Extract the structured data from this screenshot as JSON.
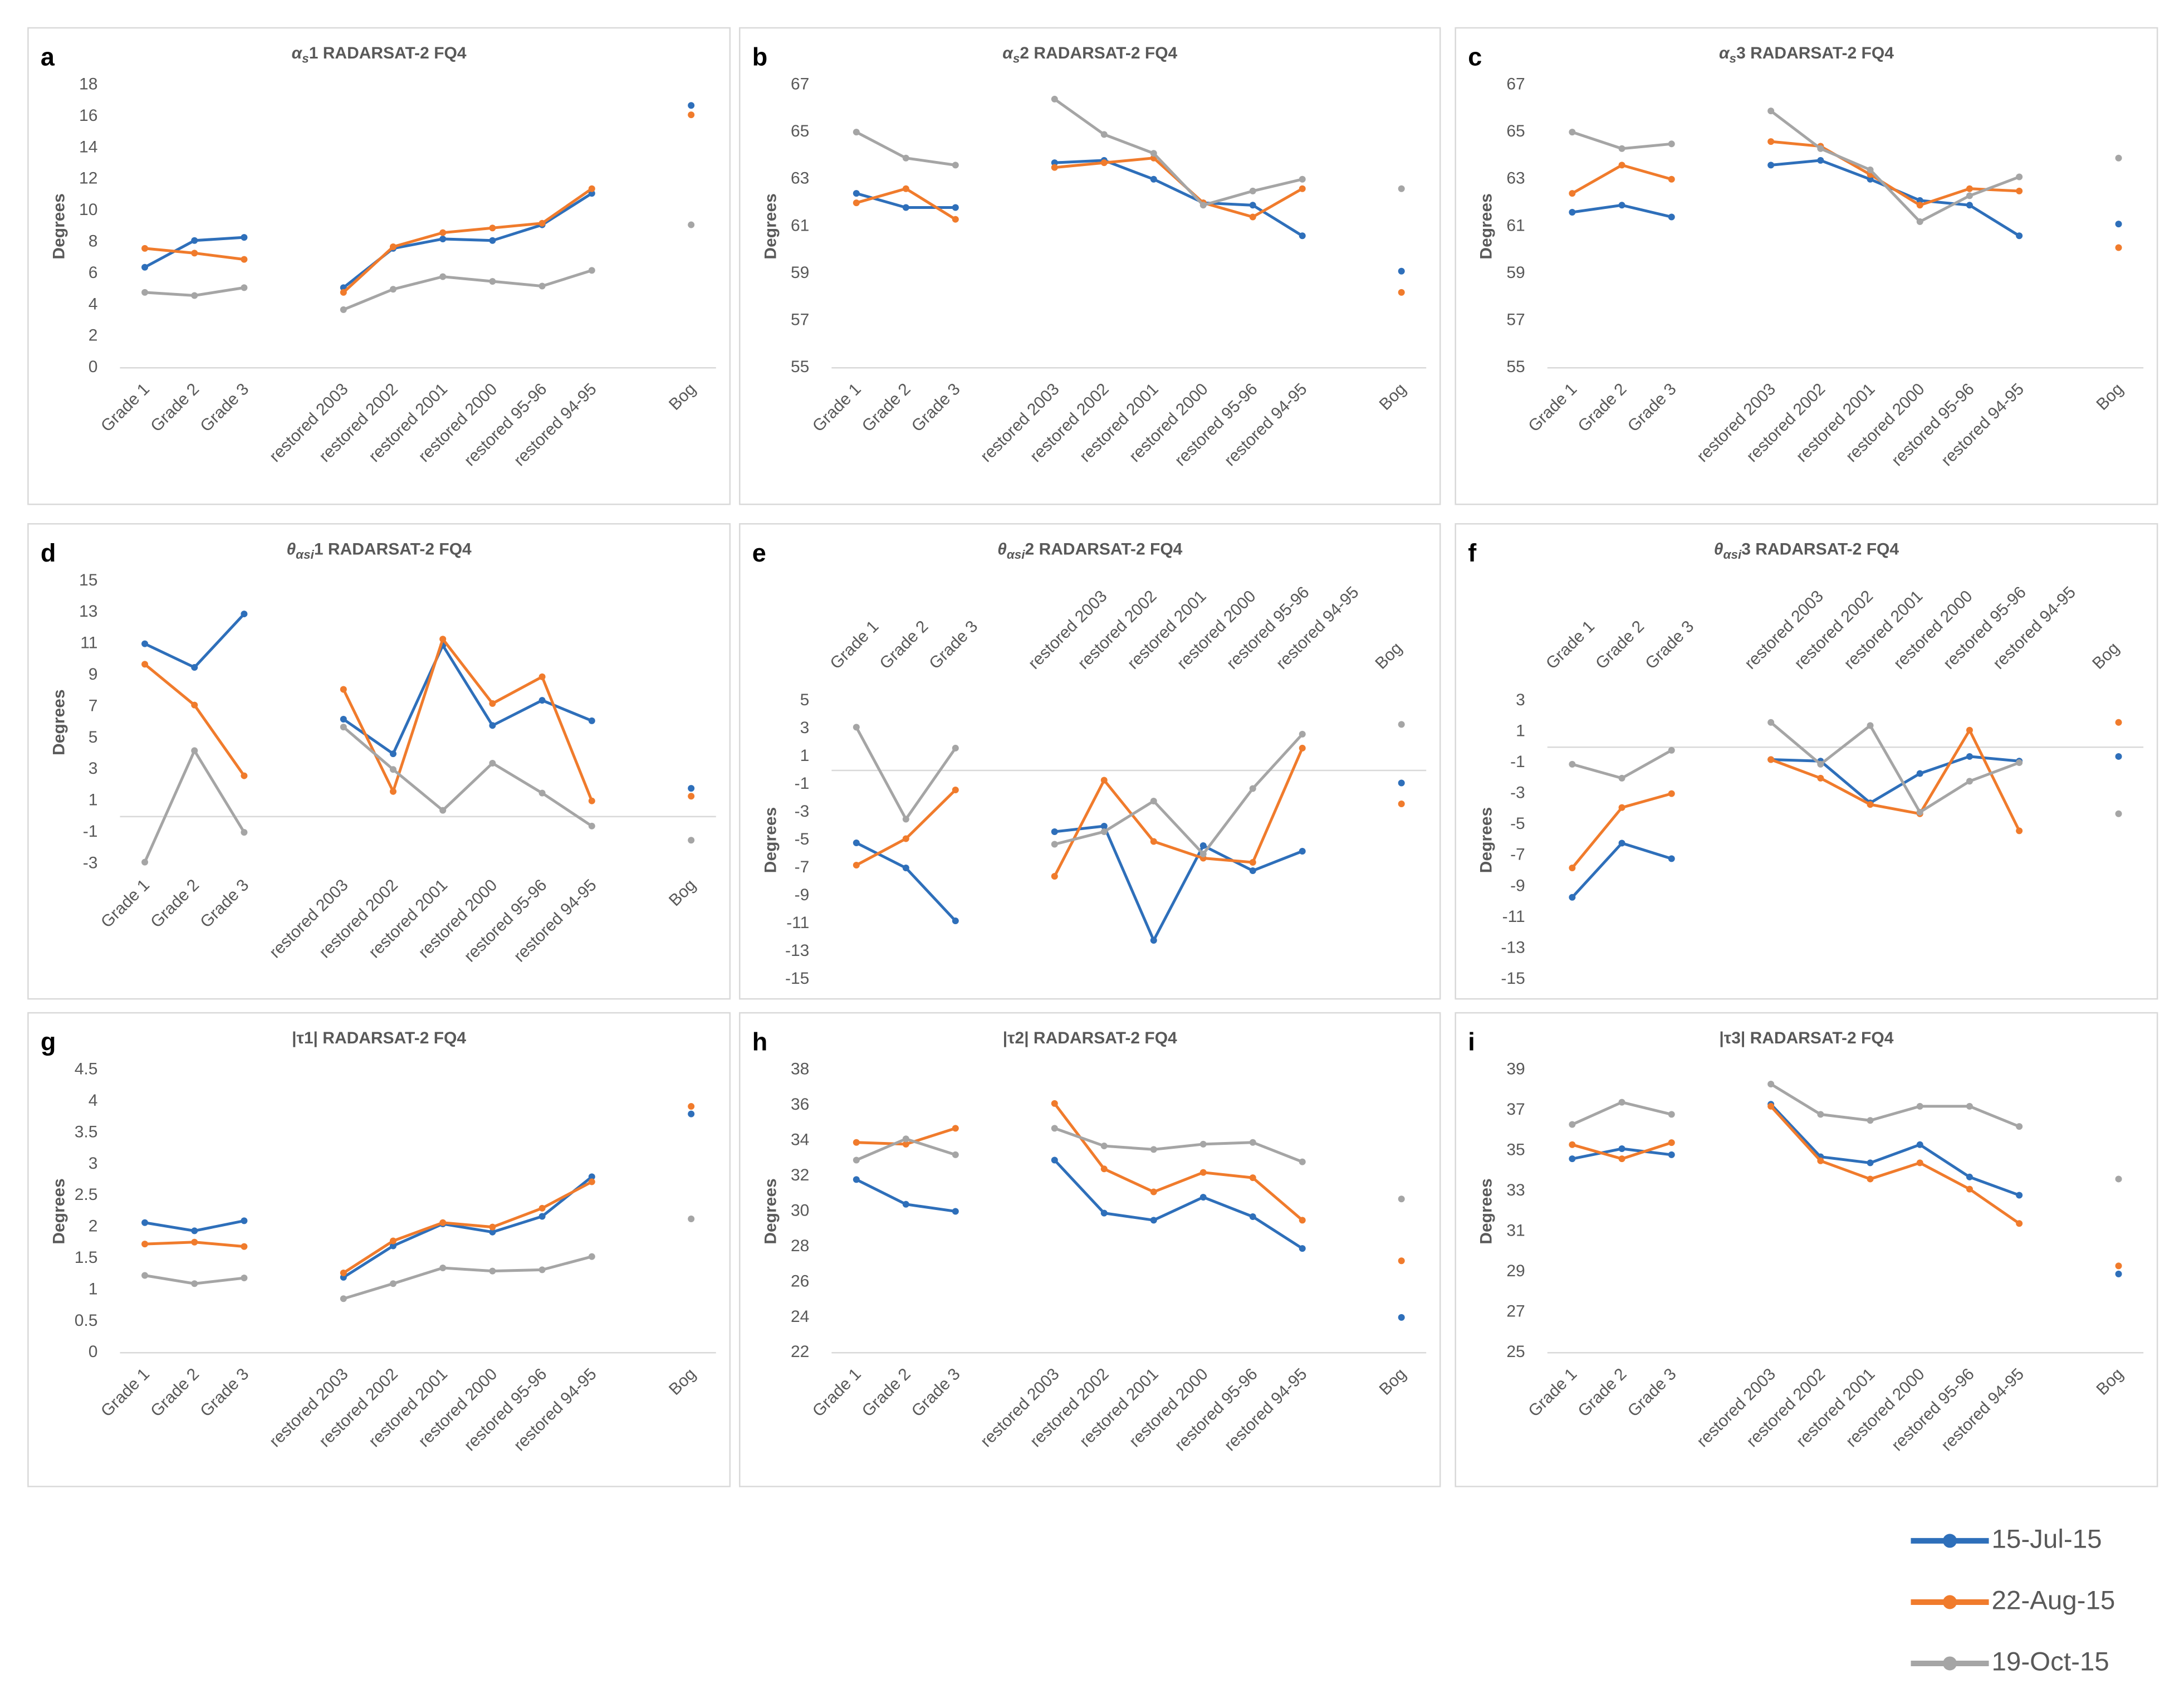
{
  "legend": [
    {
      "name": "15-Jul-15",
      "color": "#2e6fba"
    },
    {
      "name": "22-Aug-15",
      "color": "#f07b2c"
    },
    {
      "name": "19-Oct-15",
      "color": "#a5a5a5"
    }
  ],
  "chart_data": [
    {
      "type": "line",
      "label": "a",
      "title_symbol": "α",
      "title_sub": "s",
      "title_rest": "1  RADARSAT-2 FQ4",
      "ylabel": "Degrees",
      "x_labels": "bottom",
      "grid": false,
      "categories": [
        "Grade 1",
        "Grade 2",
        "Grade 3",
        null,
        "restored 2003",
        "restored 2002",
        "restored 2001",
        "restored 2000",
        "restored 95-96",
        "restored 94-95",
        null,
        "Bog"
      ],
      "ylim": [
        0,
        18
      ],
      "yticks": [
        0,
        2,
        4,
        6,
        8,
        10,
        12,
        14,
        16,
        18
      ],
      "series": [
        {
          "values": [
            6.4,
            8.1,
            8.3,
            null,
            5.1,
            7.6,
            8.2,
            8.1,
            9.1,
            11.1,
            null,
            16.7
          ]
        },
        {
          "values": [
            7.6,
            7.3,
            6.9,
            null,
            4.8,
            7.7,
            8.6,
            8.9,
            9.2,
            11.4,
            null,
            16.1
          ]
        },
        {
          "values": [
            4.8,
            4.6,
            5.1,
            null,
            3.7,
            5.0,
            5.8,
            5.5,
            5.2,
            6.2,
            null,
            9.1
          ]
        }
      ]
    },
    {
      "type": "line",
      "label": "b",
      "title_symbol": "α",
      "title_sub": "s",
      "title_rest": "2  RADARSAT-2 FQ4",
      "ylabel": "Degrees",
      "x_labels": "bottom",
      "grid": false,
      "categories": [
        "Grade 1",
        "Grade 2",
        "Grade 3",
        null,
        "restored 2003",
        "restored 2002",
        "restored 2001",
        "restored 2000",
        "restored 95-96",
        "restored 94-95",
        null,
        "Bog"
      ],
      "ylim": [
        55,
        67
      ],
      "yticks": [
        55,
        57,
        59,
        61,
        63,
        65,
        67
      ],
      "series": [
        {
          "values": [
            62.4,
            61.8,
            61.8,
            null,
            63.7,
            63.8,
            63.0,
            62.0,
            61.9,
            60.6,
            null,
            59.1
          ]
        },
        {
          "values": [
            62.0,
            62.6,
            61.3,
            null,
            63.5,
            63.7,
            63.9,
            62.0,
            61.4,
            62.6,
            null,
            58.2
          ]
        },
        {
          "values": [
            65.0,
            63.9,
            63.6,
            null,
            66.4,
            64.9,
            64.1,
            61.9,
            62.5,
            63.0,
            null,
            62.6
          ]
        }
      ]
    },
    {
      "type": "line",
      "label": "c",
      "title_symbol": "α",
      "title_sub": "s",
      "title_rest": "3  RADARSAT-2 FQ4",
      "ylabel": "Degrees",
      "x_labels": "bottom",
      "grid": false,
      "categories": [
        "Grade 1",
        "Grade 2",
        "Grade 3",
        null,
        "restored 2003",
        "restored 2002",
        "restored 2001",
        "restored 2000",
        "restored 95-96",
        "restored 94-95",
        null,
        "Bog"
      ],
      "ylim": [
        55,
        67
      ],
      "yticks": [
        55,
        57,
        59,
        61,
        63,
        65,
        67
      ],
      "series": [
        {
          "values": [
            61.6,
            61.9,
            61.4,
            null,
            63.6,
            63.8,
            63.0,
            62.1,
            61.9,
            60.6,
            null,
            61.1
          ]
        },
        {
          "values": [
            62.4,
            63.6,
            63.0,
            null,
            64.6,
            64.4,
            63.2,
            61.9,
            62.6,
            62.5,
            null,
            60.1
          ]
        },
        {
          "values": [
            65.0,
            64.3,
            64.5,
            null,
            65.9,
            64.3,
            63.4,
            61.2,
            62.3,
            63.1,
            null,
            63.9
          ]
        }
      ]
    },
    {
      "type": "line",
      "label": "d",
      "title_symbol": "θ",
      "title_sub": "αsi",
      "title_rest": "1  RADARSAT-2 FQ4",
      "ylabel": "Degrees",
      "x_labels": "bottom",
      "grid": false,
      "categories": [
        "Grade 1",
        "Grade 2",
        "Grade 3",
        null,
        "restored 2003",
        "restored 2002",
        "restored 2001",
        "restored 2000",
        "restored 95-96",
        "restored 94-95",
        null,
        "Bog"
      ],
      "ylim": [
        -3,
        15
      ],
      "yticks": [
        -3,
        -1,
        1,
        3,
        5,
        7,
        9,
        11,
        13,
        15
      ],
      "series": [
        {
          "values": [
            11.0,
            9.5,
            12.9,
            null,
            6.2,
            4.0,
            10.9,
            5.8,
            7.4,
            6.1,
            null,
            1.8
          ]
        },
        {
          "values": [
            9.7,
            7.1,
            2.6,
            null,
            8.1,
            1.6,
            11.3,
            7.2,
            8.9,
            1.0,
            null,
            1.3
          ]
        },
        {
          "values": [
            -2.9,
            4.2,
            -1.0,
            null,
            5.7,
            3.0,
            0.4,
            3.4,
            1.5,
            -0.6,
            null,
            -1.5
          ]
        }
      ]
    },
    {
      "type": "line",
      "label": "e",
      "title_symbol": "θ",
      "title_sub": "αsi",
      "title_rest": "2  RADARSAT-2 FQ4",
      "ylabel": "Degrees",
      "x_labels": "top",
      "grid": false,
      "categories": [
        "Grade 1",
        "Grade 2",
        "Grade 3",
        null,
        "restored 2003",
        "restored 2002",
        "restored 2001",
        "restored 2000",
        "restored 95-96",
        "restored 94-95",
        null,
        "Bog"
      ],
      "ylim": [
        -15,
        5
      ],
      "yticks": [
        -15,
        -13,
        -11,
        -9,
        -7,
        -5,
        -3,
        -1,
        1,
        3,
        5
      ],
      "series": [
        {
          "values": [
            -5.2,
            -7.0,
            -10.8,
            null,
            -4.4,
            -4.0,
            -12.2,
            -5.4,
            -7.2,
            -5.8,
            null,
            -0.9
          ]
        },
        {
          "values": [
            -6.8,
            -4.9,
            -1.4,
            null,
            -7.6,
            -0.7,
            -5.1,
            -6.3,
            -6.6,
            1.6,
            null,
            -2.4
          ]
        },
        {
          "values": [
            3.1,
            -3.5,
            1.6,
            null,
            -5.3,
            -4.4,
            -2.2,
            -6.0,
            -1.3,
            2.6,
            null,
            3.3
          ]
        }
      ]
    },
    {
      "type": "line",
      "label": "f",
      "title_symbol": "θ",
      "title_sub": "αsi",
      "title_rest": "3  RADARSAT-2 FQ4",
      "ylabel": "Degrees",
      "x_labels": "top",
      "grid": false,
      "categories": [
        "Grade 1",
        "Grade 2",
        "Grade 3",
        null,
        "restored 2003",
        "restored 2002",
        "restored 2001",
        "restored 2000",
        "restored 95-96",
        "restored 94-95",
        null,
        "Bog"
      ],
      "ylim": [
        -15,
        3
      ],
      "yticks": [
        -15,
        -13,
        -11,
        -9,
        -7,
        -5,
        -3,
        -1,
        1,
        3
      ],
      "series": [
        {
          "values": [
            -9.7,
            -6.2,
            -7.2,
            null,
            -0.8,
            -0.9,
            -3.6,
            -1.7,
            -0.6,
            -0.9,
            null,
            -0.6
          ]
        },
        {
          "values": [
            -7.8,
            -3.9,
            -3.0,
            null,
            -0.8,
            -2.0,
            -3.7,
            -4.3,
            1.1,
            -5.4,
            null,
            1.6
          ]
        },
        {
          "values": [
            -1.1,
            -2.0,
            -0.2,
            null,
            1.6,
            -1.1,
            1.4,
            -4.2,
            -2.2,
            -1.0,
            null,
            -4.3
          ]
        }
      ]
    },
    {
      "type": "line",
      "label": "g",
      "title_rest": "|τ1|  RADARSAT-2 FQ4",
      "ylabel": "Degrees",
      "x_labels": "bottom",
      "grid": false,
      "categories": [
        "Grade 1",
        "Grade 2",
        "Grade 3",
        null,
        "restored 2003",
        "restored 2002",
        "restored 2001",
        "restored 2000",
        "restored 95-96",
        "restored 94-95",
        null,
        "Bog"
      ],
      "ylim": [
        0,
        4.5
      ],
      "yticks": [
        0,
        0.5,
        1,
        1.5,
        2,
        2.5,
        3,
        3.5,
        4,
        4.5
      ],
      "series": [
        {
          "values": [
            2.07,
            1.94,
            2.1,
            null,
            1.2,
            1.7,
            2.05,
            1.92,
            2.17,
            2.8,
            null,
            3.8
          ]
        },
        {
          "values": [
            1.73,
            1.76,
            1.69,
            null,
            1.27,
            1.78,
            2.07,
            2.0,
            2.3,
            2.72,
            null,
            3.92
          ]
        },
        {
          "values": [
            1.23,
            1.1,
            1.19,
            null,
            0.86,
            1.1,
            1.35,
            1.3,
            1.32,
            1.53,
            null,
            2.13
          ]
        }
      ]
    },
    {
      "type": "line",
      "label": "h",
      "title_rest": "|τ2|  RADARSAT-2 FQ4",
      "ylabel": "Degrees",
      "x_labels": "bottom",
      "grid": false,
      "categories": [
        "Grade 1",
        "Grade 2",
        "Grade 3",
        null,
        "restored 2003",
        "restored 2002",
        "restored 2001",
        "restored 2000",
        "restored 95-96",
        "restored 94-95",
        null,
        "Bog"
      ],
      "ylim": [
        22,
        38
      ],
      "yticks": [
        22,
        24,
        26,
        28,
        30,
        32,
        34,
        36,
        38
      ],
      "series": [
        {
          "values": [
            31.8,
            30.4,
            30.0,
            null,
            32.9,
            29.9,
            29.5,
            30.8,
            29.7,
            27.9,
            null,
            24.0
          ]
        },
        {
          "values": [
            33.9,
            33.8,
            34.7,
            null,
            36.1,
            32.4,
            31.1,
            32.2,
            31.9,
            29.5,
            null,
            27.2
          ]
        },
        {
          "values": [
            32.9,
            34.1,
            33.2,
            null,
            34.7,
            33.7,
            33.5,
            33.8,
            33.9,
            32.8,
            null,
            30.7
          ]
        }
      ]
    },
    {
      "type": "line",
      "label": "i",
      "title_rest": "|τ3|  RADARSAT-2 FQ4",
      "ylabel": "Degrees",
      "x_labels": "bottom",
      "grid": false,
      "categories": [
        "Grade 1",
        "Grade 2",
        "Grade 3",
        null,
        "restored 2003",
        "restored 2002",
        "restored 2001",
        "restored 2000",
        "restored 95-96",
        "restored 94-95",
        null,
        "Bog"
      ],
      "ylim": [
        25,
        39
      ],
      "yticks": [
        25,
        27,
        29,
        31,
        33,
        35,
        37,
        39
      ],
      "series": [
        {
          "values": [
            34.6,
            35.1,
            34.8,
            null,
            37.3,
            34.7,
            34.4,
            35.3,
            33.7,
            32.8,
            null,
            28.9
          ]
        },
        {
          "values": [
            35.3,
            34.6,
            35.4,
            null,
            37.2,
            34.5,
            33.6,
            34.4,
            33.1,
            31.4,
            null,
            29.3
          ]
        },
        {
          "values": [
            36.3,
            37.4,
            36.8,
            null,
            38.3,
            36.8,
            36.5,
            37.2,
            37.2,
            36.2,
            null,
            33.6
          ]
        }
      ]
    }
  ]
}
